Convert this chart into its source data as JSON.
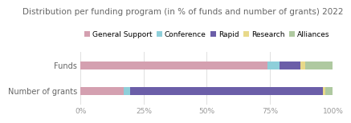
{
  "title": "Distribution per funding program (in % of funds and number of grants) 2022",
  "categories": [
    "Funds",
    "Number of grants"
  ],
  "legend_labels": [
    "General Support",
    "Conference",
    "Rapid",
    "Research",
    "Alliances"
  ],
  "colors": [
    "#d4a0b0",
    "#8ecfda",
    "#6b5ea8",
    "#e8d98a",
    "#afc9a0"
  ],
  "funds_values": [
    74.0,
    5.0,
    8.0,
    2.0,
    11.0
  ],
  "grants_values": [
    17.0,
    2.5,
    76.5,
    1.0,
    3.0
  ],
  "background_color": "#ffffff",
  "grid_color": "#e0e0e0",
  "title_fontsize": 7.5,
  "legend_fontsize": 6.5,
  "tick_fontsize": 6.5,
  "label_fontsize": 7.0,
  "title_color": "#666666",
  "tick_color": "#999999",
  "label_color": "#666666"
}
